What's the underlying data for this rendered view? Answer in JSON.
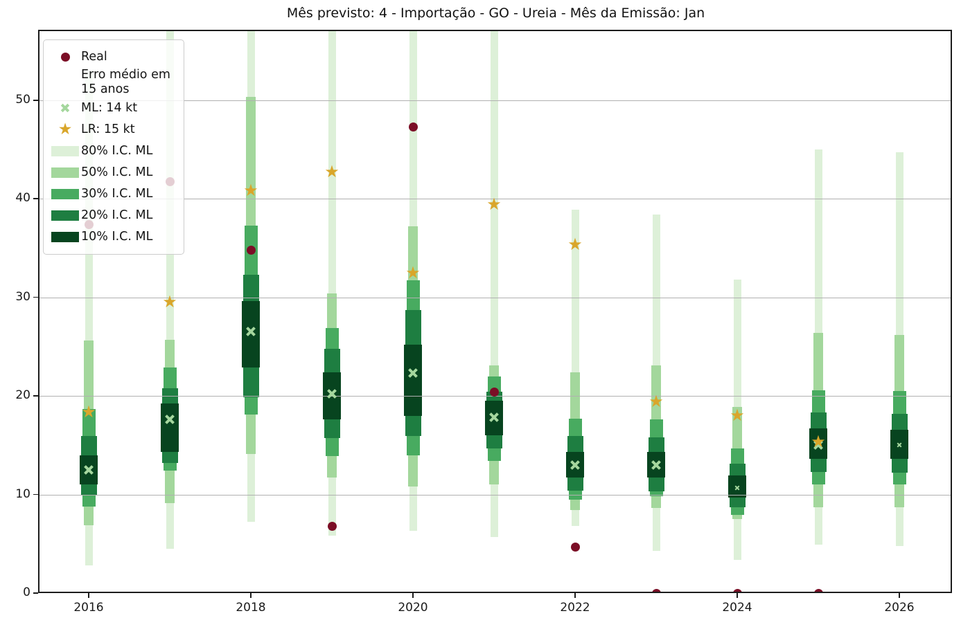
{
  "title": "Mês previsto: 4 - Importação - GO - Ureia - Mês da Emissão: Jan",
  "legend": {
    "entries": [
      {
        "marker": "dot",
        "label": "Real"
      },
      {
        "marker": "none",
        "label": "Erro médio em 15 anos"
      },
      {
        "marker": "x",
        "label": "ML: 14 kt"
      },
      {
        "marker": "star",
        "label": "LR: 15 kt"
      },
      {
        "marker": "patch80",
        "label": "80% I.C. ML"
      },
      {
        "marker": "patch50",
        "label": "50% I.C. ML"
      },
      {
        "marker": "patch30",
        "label": "30% I.C. ML"
      },
      {
        "marker": "patch20",
        "label": "20% I.C. ML"
      },
      {
        "marker": "patch10",
        "label": "10% I.C. ML"
      }
    ]
  },
  "colors": {
    "real": "#7b0e26",
    "lr_star": "#d9a62b",
    "ml_x": "#a5d79e",
    "ci80": "#ddf0d8",
    "ci50": "#a3d79c",
    "ci30": "#48ab60",
    "ci20": "#1e7e41",
    "ci10": "#07441f",
    "grid": "#b0b0b0",
    "spine": "#1c1c1c"
  },
  "chart_data": {
    "type": "fan-intervals",
    "title": "Mês previsto: 4 - Importação - GO - Ureia - Mês da Emissão: Jan",
    "xlabel": "",
    "ylabel": "",
    "ylim": [
      0,
      57
    ],
    "xlim": [
      2015.4,
      2026.65
    ],
    "y_ticks": [
      0,
      10,
      20,
      30,
      40,
      50
    ],
    "x_ticks": [
      2016,
      2018,
      2020,
      2022,
      2024,
      2026
    ],
    "grid": "horizontal, drawn above bands",
    "legend_position": "upper left",
    "series_note": "per year: real (dot), lr (star), ml (x), nested confidence bands for ML",
    "series": [
      {
        "year": 2016,
        "real": 37.4,
        "lr": 18.3,
        "ml": 12.5,
        "ci80": [
          2.8,
          53.0
        ],
        "ci50": [
          6.9,
          25.6
        ],
        "ci30": [
          8.8,
          18.7
        ],
        "ci20": [
          10.0,
          15.9
        ],
        "ci10": [
          11.0,
          14.0
        ],
        "ml_small": false
      },
      {
        "year": 2017,
        "real": 41.7,
        "lr": 29.5,
        "ml": 17.6,
        "ci80": [
          4.5,
          57.5
        ],
        "ci50": [
          9.1,
          25.7
        ],
        "ci30": [
          12.4,
          22.9
        ],
        "ci20": [
          13.2,
          20.8
        ],
        "ci10": [
          14.3,
          19.2
        ],
        "ml_small": false
      },
      {
        "year": 2018,
        "real": 34.8,
        "lr": 40.8,
        "ml": 26.5,
        "ci80": [
          7.2,
          57.5
        ],
        "ci50": [
          14.1,
          50.3
        ],
        "ci30": [
          18.1,
          37.3
        ],
        "ci20": [
          19.9,
          32.3
        ],
        "ci10": [
          22.9,
          29.6
        ],
        "ml_small": false
      },
      {
        "year": 2019,
        "real": 6.8,
        "lr": 42.7,
        "ml": 20.2,
        "ci80": [
          5.8,
          57.5
        ],
        "ci50": [
          11.7,
          30.4
        ],
        "ci30": [
          13.9,
          26.9
        ],
        "ci20": [
          15.7,
          24.8
        ],
        "ci10": [
          17.6,
          22.4
        ],
        "ml_small": false
      },
      {
        "year": 2020,
        "real": 47.3,
        "lr": 32.4,
        "ml": 22.3,
        "ci80": [
          6.3,
          57.5
        ],
        "ci50": [
          10.8,
          37.2
        ],
        "ci30": [
          14.0,
          31.7
        ],
        "ci20": [
          15.9,
          28.7
        ],
        "ci10": [
          18.0,
          25.2
        ],
        "ml_small": false
      },
      {
        "year": 2021,
        "real": 20.4,
        "lr": 39.4,
        "ml": 17.8,
        "ci80": [
          5.7,
          57.5
        ],
        "ci50": [
          11.0,
          23.1
        ],
        "ci30": [
          13.4,
          22.0
        ],
        "ci20": [
          14.7,
          20.4
        ],
        "ci10": [
          16.0,
          19.5
        ],
        "ml_small": false
      },
      {
        "year": 2022,
        "real": 4.7,
        "lr": 35.3,
        "ml": 13.0,
        "ci80": [
          6.8,
          38.9
        ],
        "ci50": [
          8.4,
          22.4
        ],
        "ci30": [
          9.5,
          17.7
        ],
        "ci20": [
          10.4,
          15.9
        ],
        "ci10": [
          11.7,
          14.3
        ],
        "ml_small": false
      },
      {
        "year": 2023,
        "real": 0,
        "lr": 19.4,
        "ml": 13.0,
        "ci80": [
          4.3,
          38.4
        ],
        "ci50": [
          8.6,
          23.1
        ],
        "ci30": [
          9.8,
          17.6
        ],
        "ci20": [
          10.3,
          15.8
        ],
        "ci10": [
          11.7,
          14.3
        ],
        "ml_small": false
      },
      {
        "year": 2024,
        "real": 0,
        "lr": 18.0,
        "ml": 10.7,
        "ci80": [
          3.4,
          31.8
        ],
        "ci50": [
          7.5,
          18.9
        ],
        "ci30": [
          7.9,
          14.7
        ],
        "ci20": [
          8.7,
          13.1
        ],
        "ci10": [
          9.7,
          11.9
        ],
        "ml_small": true
      },
      {
        "year": 2025,
        "real": 0,
        "lr": 15.3,
        "ml": 15.0,
        "ci80": [
          4.9,
          45.0
        ],
        "ci50": [
          8.7,
          26.4
        ],
        "ci30": [
          11.0,
          20.6
        ],
        "ci20": [
          12.3,
          18.3
        ],
        "ci10": [
          13.6,
          16.7
        ],
        "ml_small": false
      },
      {
        "year": 2026,
        "real": null,
        "lr": null,
        "ml": 15.0,
        "ci80": [
          4.8,
          44.7
        ],
        "ci50": [
          8.7,
          26.2
        ],
        "ci30": [
          11.0,
          20.5
        ],
        "ci20": [
          12.2,
          18.2
        ],
        "ci10": [
          13.6,
          16.6
        ],
        "ml_small": true
      }
    ]
  }
}
